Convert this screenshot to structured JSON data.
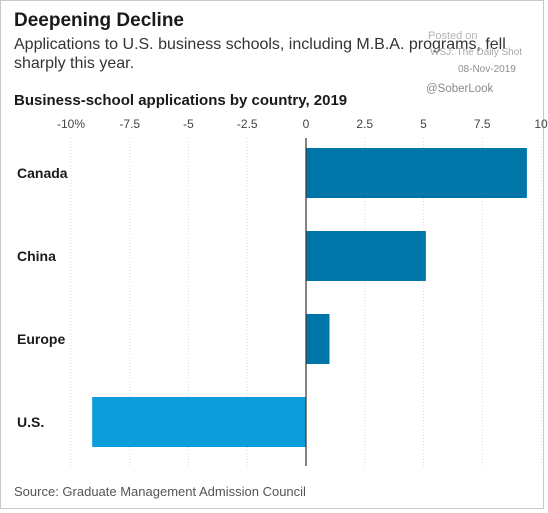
{
  "header": {
    "title": "Deepening Decline",
    "subtitle": "Applications to U.S. business schools, including M.B.A. programs, fell sharply this year."
  },
  "watermark": {
    "posted": "Posted on",
    "source": "WSJ: The Daily Shot",
    "date": "08-Nov-2019",
    "handle": "@SoberLook"
  },
  "footer": {
    "source": "Source: Graduate Management Admission Council"
  },
  "colors": {
    "positive_bar": "#0075a8",
    "negative_bar": "#0d9ddb",
    "grid": "#dcdcdc",
    "zero_line": "#333333"
  },
  "chart_data": {
    "type": "bar",
    "orientation": "horizontal",
    "title": "Business-school applications by country, 2019",
    "categories": [
      "Canada",
      "China",
      "Europe",
      "U.S."
    ],
    "values": [
      9.4,
      5.1,
      1.0,
      -9.1
    ],
    "xlim": [
      -10,
      10
    ],
    "xticks": [
      -10,
      -7.5,
      -5,
      -2.5,
      0,
      2.5,
      5,
      7.5,
      10
    ],
    "xtick_labels": [
      "-10%",
      "-7.5",
      "-5",
      "-2.5",
      "0",
      "2.5",
      "5",
      "7.5",
      "10"
    ],
    "xlabel": "",
    "ylabel": "",
    "grid": "vertical",
    "legend": "none"
  }
}
